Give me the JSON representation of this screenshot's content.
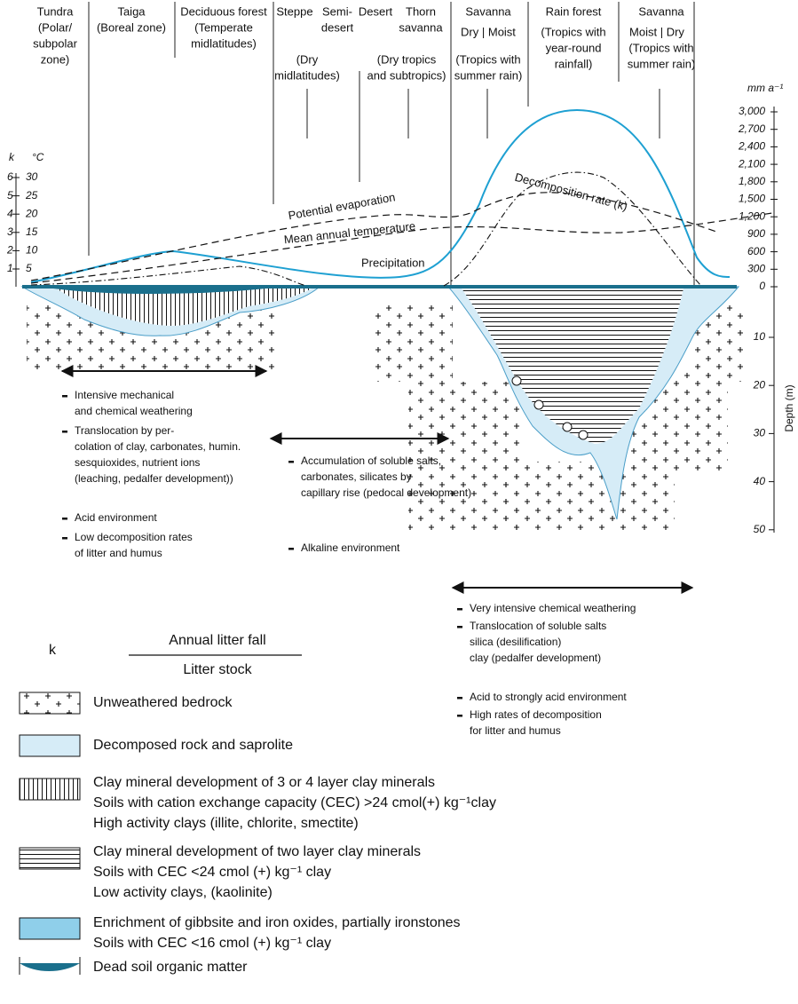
{
  "zones": [
    {
      "lines": [
        "Tundra",
        "(Polar/",
        "subpolar",
        "zone)"
      ]
    },
    {
      "lines": [
        "Taiga",
        "(Boreal zone)"
      ]
    },
    {
      "lines": [
        "Deciduous forest",
        "(Temperate",
        "midlatitudes)"
      ]
    },
    {
      "lines": [
        "Steppe"
      ]
    },
    {
      "lines": [
        "Semi-",
        "desert"
      ]
    },
    {
      "lines": [
        "Desert"
      ]
    },
    {
      "lines": [
        "Thorn",
        "savanna"
      ]
    },
    {
      "lines": [
        "Savanna",
        "Dry | Moist",
        "(Tropics with",
        "summer rain)"
      ]
    },
    {
      "lines": [
        "Rain forest",
        "(Tropics with",
        "year-round",
        "rainfall)"
      ]
    },
    {
      "lines": [
        "Savanna",
        "Moist | Dry",
        "(Tropics with",
        "summer rain)"
      ]
    }
  ],
  "dry_zones": [
    {
      "lines": [
        "(Dry",
        "midlatitudes)"
      ]
    },
    {
      "lines": [
        "(Dry tropics",
        "and subtropics)"
      ]
    }
  ],
  "left_axis": {
    "k_label": "k",
    "temp_label": "°C",
    "k_ticks": [
      "6",
      "5",
      "4",
      "3",
      "2",
      "1"
    ],
    "temp_ticks": [
      "30",
      "25",
      "20",
      "15",
      "10",
      "5"
    ]
  },
  "right_axis": {
    "unit": "mm a⁻¹",
    "ticks": [
      "3,000",
      "2,700",
      "2,400",
      "2,100",
      "1,800",
      "1,500",
      "1,200",
      "900",
      "600",
      "300",
      "0"
    ],
    "depth_label": "Depth (m)",
    "depth_ticks": [
      "10",
      "20",
      "30",
      "40",
      "50"
    ]
  },
  "curve_labels": {
    "potential_evaporation": "Potential evaporation",
    "temperature": "Mean annual temperature",
    "precipitation": "Precipitation",
    "decomposition": "Decomposition rate (k)"
  },
  "notes": {
    "temperate": [
      [
        "Intensive mechanical",
        "and chemical weathering"
      ],
      [
        "Translocation by per-",
        "colation of clay, carbonates, humin.",
        "sesquioxides, nutrient ions",
        "(leaching, pedalfer development))"
      ],
      [
        "Acid environment"
      ],
      [
        "Low decomposition rates",
        "of litter and humus"
      ]
    ],
    "arid": [
      [
        "Accumulation of soluble salts,",
        "carbonates, silicates by",
        "capillary rise (pedocal development)"
      ],
      [
        "Alkaline environment"
      ]
    ],
    "tropical": [
      [
        "Very intensive chemical weathering"
      ],
      [
        "Translocation of soluble salts",
        "silica (desilification)",
        "clay (pedalfer development)"
      ],
      [
        "Acid to strongly acid environment"
      ],
      [
        "High rates of decomposition",
        "for litter and humus"
      ]
    ]
  },
  "legend": {
    "k": "k",
    "numerator": "Annual litter fall",
    "denominator": "Litter stock",
    "items": [
      {
        "lines": [
          "Unweathered bedrock"
        ]
      },
      {
        "lines": [
          "Decomposed rock and saprolite"
        ]
      },
      {
        "lines": [
          "Clay mineral development of 3 or 4 layer clay minerals",
          "Soils with cation exchange capacity (CEC) >24 cmol(+) kg⁻¹clay",
          "High activity clays (illite, chlorite, smectite)"
        ]
      },
      {
        "lines": [
          "Clay mineral development of two layer clay minerals",
          "Soils with CEC <24 cmol (+) kg⁻¹ clay",
          "Low activity clays, (kaolinite)"
        ]
      },
      {
        "lines": [
          "Enrichment of gibbsite and iron oxides, partially ironstones",
          "Soils with CEC <16 cmol (+) kg⁻¹ clay"
        ]
      },
      {
        "lines": [
          "Dead soil organic matter"
        ]
      }
    ]
  }
}
